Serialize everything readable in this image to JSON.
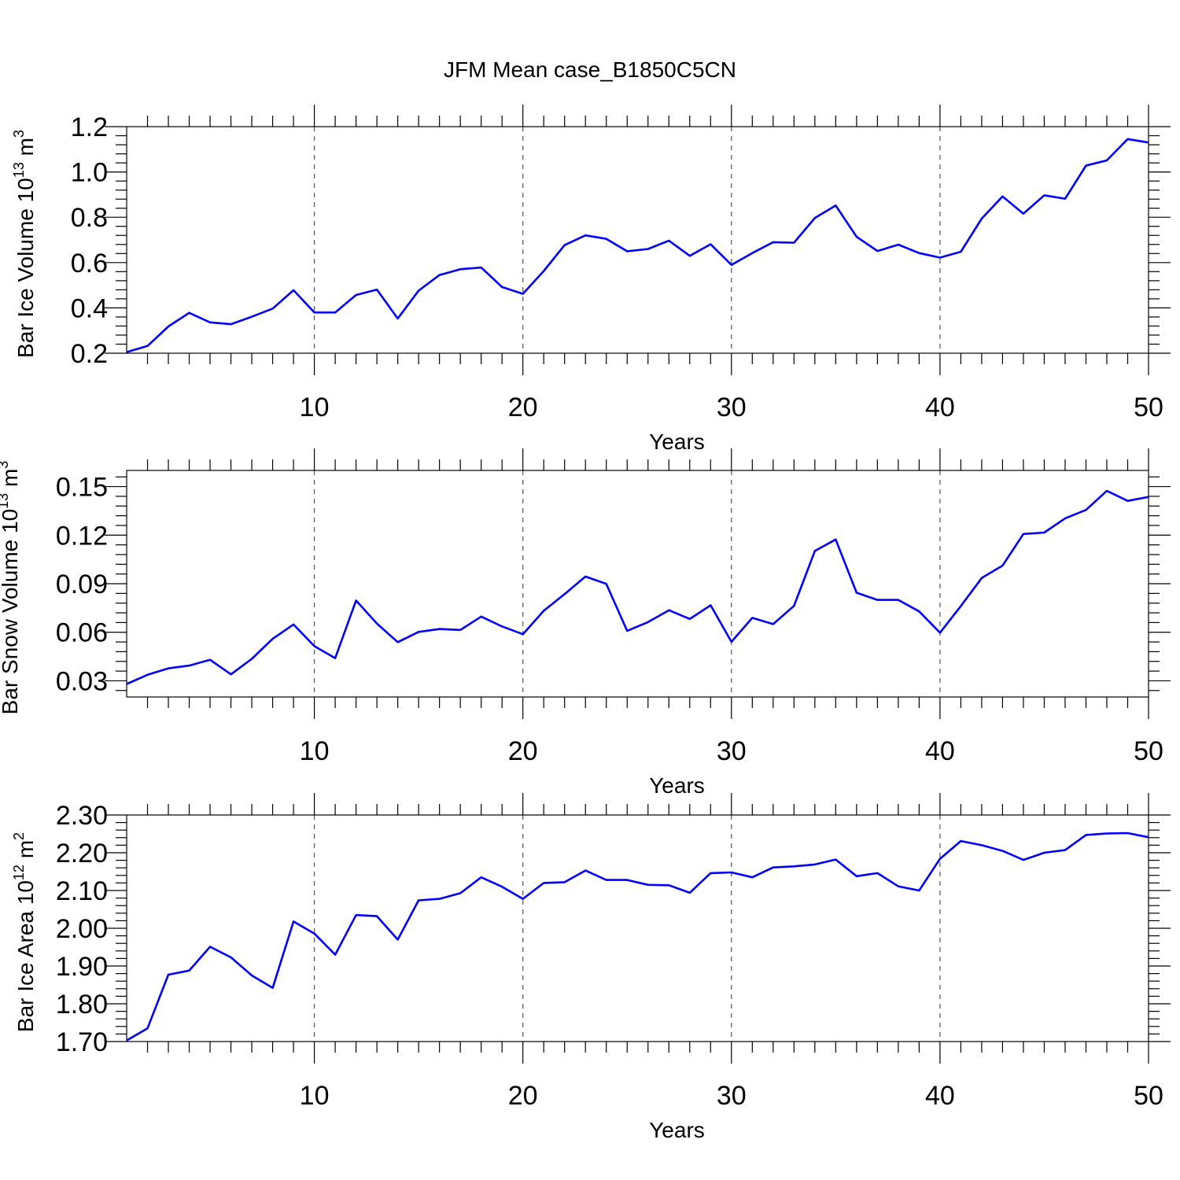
{
  "figure": {
    "title": "JFM Mean case_B1850C5CN"
  },
  "chart_data": [
    {
      "type": "line",
      "id": "ice-volume",
      "ylabel": {
        "text": "Bar Ice Volume 10",
        "exp": "13",
        "unit": " m",
        "unitExp": "3"
      },
      "xlabel": "Years",
      "xlim": [
        1,
        50
      ],
      "ylim": [
        0.2,
        1.2
      ],
      "xticks": [
        10,
        20,
        30,
        40,
        50
      ],
      "yticks": [
        "0.2",
        "0.4",
        "0.6",
        "0.8",
        "1.0",
        "1.2"
      ],
      "x": [
        1,
        2,
        3,
        4,
        5,
        6,
        7,
        8,
        9,
        10,
        11,
        12,
        13,
        14,
        15,
        16,
        17,
        18,
        19,
        20,
        21,
        22,
        23,
        24,
        25,
        26,
        27,
        28,
        29,
        30,
        31,
        32,
        33,
        34,
        35,
        36,
        37,
        38,
        39,
        40,
        41,
        42,
        43,
        44,
        45,
        46,
        47,
        48,
        49,
        50
      ],
      "series": [
        {
          "name": "Bar Ice Volume",
          "color": "#0000ff",
          "values": [
            0.205,
            0.232,
            0.318,
            0.378,
            0.336,
            0.328,
            0.361,
            0.397,
            0.478,
            0.38,
            0.38,
            0.457,
            0.481,
            0.353,
            0.476,
            0.545,
            0.571,
            0.578,
            0.492,
            0.462,
            0.563,
            0.677,
            0.72,
            0.705,
            0.65,
            0.66,
            0.697,
            0.63,
            0.681,
            0.59,
            0.642,
            0.69,
            0.688,
            0.797,
            0.852,
            0.714,
            0.651,
            0.679,
            0.642,
            0.622,
            0.648,
            0.794,
            0.892,
            0.816,
            0.897,
            0.882,
            1.028,
            1.051,
            1.145,
            1.13
          ]
        }
      ]
    },
    {
      "type": "line",
      "id": "snow-volume",
      "ylabel": {
        "text": "Bar Snow Volume 10",
        "exp": "13",
        "unit": " m",
        "unitExp": "3"
      },
      "xlabel": "Years",
      "xlim": [
        1,
        50
      ],
      "ylim": [
        0.02,
        0.16
      ],
      "xticks": [
        10,
        20,
        30,
        40,
        50
      ],
      "yticks": [
        "0.03",
        "0.06",
        "0.09",
        "0.12",
        "0.15"
      ],
      "x": [
        1,
        2,
        3,
        4,
        5,
        6,
        7,
        8,
        9,
        10,
        11,
        12,
        13,
        14,
        15,
        16,
        17,
        18,
        19,
        20,
        21,
        22,
        23,
        24,
        25,
        26,
        27,
        28,
        29,
        30,
        31,
        32,
        33,
        34,
        35,
        36,
        37,
        38,
        39,
        40,
        41,
        42,
        43,
        44,
        45,
        46,
        47,
        48,
        49,
        50
      ],
      "series": [
        {
          "name": "Bar Snow Volume",
          "color": "#0000ff",
          "values": [
            0.028,
            0.0337,
            0.0377,
            0.0394,
            0.043,
            0.034,
            0.0436,
            0.0559,
            0.0648,
            0.0514,
            0.044,
            0.0796,
            0.0654,
            0.0539,
            0.0602,
            0.062,
            0.0614,
            0.0697,
            0.0636,
            0.0588,
            0.0733,
            0.0836,
            0.0944,
            0.0899,
            0.0609,
            0.0663,
            0.0736,
            0.0682,
            0.0767,
            0.0541,
            0.0689,
            0.065,
            0.0763,
            0.1102,
            0.1173,
            0.0844,
            0.08,
            0.08,
            0.0729,
            0.0597,
            0.0762,
            0.0935,
            0.1012,
            0.1207,
            0.1216,
            0.1304,
            0.1356,
            0.1474,
            0.1412,
            0.1436
          ]
        }
      ]
    },
    {
      "type": "line",
      "id": "ice-area",
      "ylabel": {
        "text": "Bar Ice Area 10",
        "exp": "12",
        "unit": " m",
        "unitExp": "2"
      },
      "xlabel": "Years",
      "xlim": [
        1,
        50
      ],
      "ylim": [
        1.7,
        2.3
      ],
      "xticks": [
        10,
        20,
        30,
        40,
        50
      ],
      "yticks": [
        "1.70",
        "1.80",
        "1.90",
        "2.00",
        "2.10",
        "2.20",
        "2.30"
      ],
      "x": [
        1,
        2,
        3,
        4,
        5,
        6,
        7,
        8,
        9,
        10,
        11,
        12,
        13,
        14,
        15,
        16,
        17,
        18,
        19,
        20,
        21,
        22,
        23,
        24,
        25,
        26,
        27,
        28,
        29,
        30,
        31,
        32,
        33,
        34,
        35,
        36,
        37,
        38,
        39,
        40,
        41,
        42,
        43,
        44,
        45,
        46,
        47,
        48,
        49,
        50
      ],
      "series": [
        {
          "name": "Bar Ice Area",
          "color": "#0000ff",
          "values": [
            1.703,
            1.735,
            1.877,
            1.888,
            1.951,
            1.923,
            1.875,
            1.842,
            2.018,
            1.986,
            1.93,
            2.035,
            2.032,
            1.97,
            2.074,
            2.078,
            2.093,
            2.135,
            2.11,
            2.078,
            2.12,
            2.122,
            2.153,
            2.128,
            2.128,
            2.115,
            2.114,
            2.094,
            2.146,
            2.148,
            2.135,
            2.161,
            2.164,
            2.169,
            2.182,
            2.138,
            2.146,
            2.111,
            2.1,
            2.184,
            2.231,
            2.22,
            2.205,
            2.181,
            2.2,
            2.207,
            2.247,
            2.251,
            2.252,
            2.241
          ]
        }
      ]
    }
  ]
}
